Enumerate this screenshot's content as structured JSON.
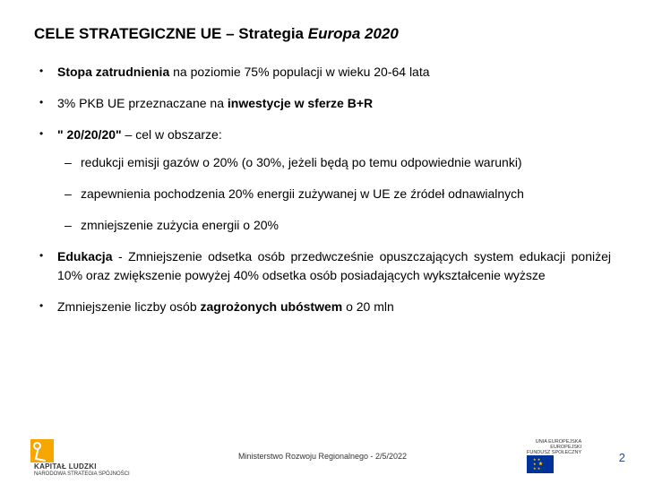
{
  "title": {
    "prefix": "CELE STRATEGICZNE UE – Strategia ",
    "italic": "Europa 2020"
  },
  "bullets": [
    {
      "pre": "",
      "bold": "Stopa zatrudnienia",
      "post": " na poziomie 75% populacji w wieku 20-64 lata"
    },
    {
      "pre": "3% PKB UE przeznaczane na ",
      "bold": "inwestycje w sferze B+R",
      "post": ""
    },
    {
      "pre": "",
      "bold": "\" 20/20/20\"",
      "post": " – cel w obszarze:"
    }
  ],
  "sub": [
    "redukcji emisji gazów o 20% (o 30%, jeżeli będą po temu odpowiednie warunki)",
    "zapewnienia pochodzenia 20% energii zużywanej w UE ze źródeł odnawialnych",
    "zmniejszenie zużycia energii o 20%"
  ],
  "bullets2": [
    {
      "pre": "",
      "bold": "Edukacja",
      "post": " - Zmniejszenie odsetka osób przedwcześnie opuszczających system edukacji poniżej 10% oraz zwiększenie powyżej 40% odsetka osób posiadających wykształcenie wyższe"
    },
    {
      "pre": "Zmniejszenie liczby osób ",
      "bold": "zagrożonych ubóstwem",
      "post": " o 20 mln"
    }
  ],
  "footer": {
    "ministry": "Ministerstwo Rozwoju Regionalnego - ",
    "date": "2/5/2022",
    "page": "2",
    "logo_left_line1": "KAPITAŁ LUDZKI",
    "logo_left_line2": "NARODOWA STRATEGIA SPÓJNOŚCI",
    "logo_right_line1": "UNIA EUROPEJSKA",
    "logo_right_line2": "EUROPEJSKI",
    "logo_right_line3": "FUNDUSZ SPOŁECZNY"
  },
  "style": {
    "bg": "#ffffff",
    "text": "#000000",
    "accent": "#2a4b8d",
    "title_fontsize": 17,
    "body_fontsize": 14,
    "footer_fontsize": 9
  }
}
